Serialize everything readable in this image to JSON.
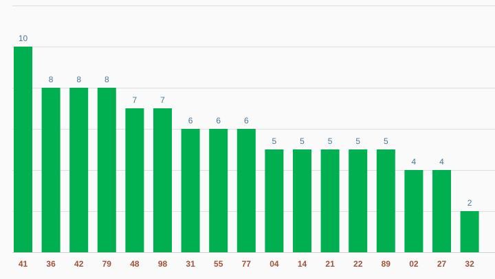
{
  "chart_data": {
    "type": "bar",
    "title": "",
    "xlabel": "",
    "ylabel": "",
    "categories": [
      "41",
      "36",
      "42",
      "79",
      "48",
      "98",
      "31",
      "55",
      "77",
      "04",
      "14",
      "21",
      "22",
      "89",
      "02",
      "27",
      "32"
    ],
    "values": [
      10,
      8,
      8,
      8,
      7,
      7,
      6,
      6,
      6,
      5,
      5,
      5,
      5,
      5,
      4,
      4,
      2
    ],
    "ylim": [
      0,
      12
    ],
    "ytick_step": 2,
    "grid": true,
    "y_tick_labels_visible": false,
    "data_labels": true,
    "legend": "none",
    "colors": {
      "bar": "#00af50",
      "value_label": "#4e7691",
      "category_label": "#a0513a",
      "grid": "#dddddd",
      "background": "#fafafa"
    }
  }
}
